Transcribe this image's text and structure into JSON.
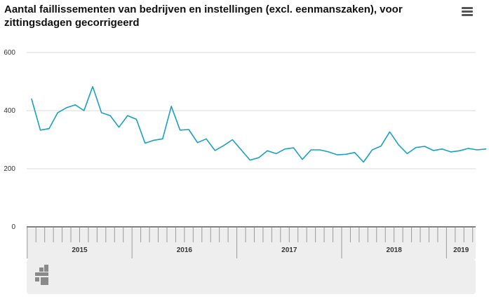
{
  "title": "Aantal faillissementen van bedrijven en instellingen (excl. eenmanszaken), voor zittingsdagen gecorrigeerd",
  "menu_icon": "hamburger-menu-icon",
  "logo_icon": "cbs-logo-icon",
  "colors": {
    "line": "#1aa0c0",
    "grid": "#d9d9d9",
    "navigator": "#eeeeee",
    "axis": "#555555"
  },
  "chart_data": {
    "type": "line",
    "title": "Aantal faillissementen van bedrijven en instellingen (excl. eenmanszaken), voor zittingsdagen gecorrigeerd",
    "xlabel": "",
    "ylabel": "",
    "ylim": [
      0,
      600
    ],
    "yticks": [
      "0",
      "200",
      "400",
      "600"
    ],
    "grid": true,
    "x_start": "2015-01",
    "x_end": "2019-05",
    "year_labels": [
      {
        "label": "2015",
        "from": "2015-01",
        "to": "2015-12"
      },
      {
        "label": "2016",
        "from": "2016-01",
        "to": "2016-12"
      },
      {
        "label": "2017",
        "from": "2017-01",
        "to": "2017-12"
      },
      {
        "label": "2018",
        "from": "2018-01",
        "to": "2018-12"
      },
      {
        "label": "2019",
        "from": "2019-01",
        "to": "2019-05"
      }
    ],
    "x": [
      "2015-01",
      "2015-02",
      "2015-03",
      "2015-04",
      "2015-05",
      "2015-06",
      "2015-07",
      "2015-08",
      "2015-09",
      "2015-10",
      "2015-11",
      "2015-12",
      "2016-01",
      "2016-02",
      "2016-03",
      "2016-04",
      "2016-05",
      "2016-06",
      "2016-07",
      "2016-08",
      "2016-09",
      "2016-10",
      "2016-11",
      "2016-12",
      "2017-01",
      "2017-02",
      "2017-03",
      "2017-04",
      "2017-05",
      "2017-06",
      "2017-07",
      "2017-08",
      "2017-09",
      "2017-10",
      "2017-11",
      "2017-12",
      "2018-01",
      "2018-02",
      "2018-03",
      "2018-04",
      "2018-05",
      "2018-06",
      "2018-07",
      "2018-08",
      "2018-09",
      "2018-10",
      "2018-11",
      "2018-12",
      "2019-01",
      "2019-02",
      "2019-03",
      "2019-04",
      "2019-05"
    ],
    "series": [
      {
        "values": [
          440,
          333,
          338,
          393,
          410,
          420,
          400,
          483,
          393,
          383,
          343,
          383,
          370,
          288,
          298,
          303,
          415,
          333,
          335,
          290,
          303,
          263,
          280,
          300,
          265,
          230,
          238,
          262,
          252,
          268,
          272,
          232,
          265,
          265,
          258,
          248,
          250,
          256,
          223,
          265,
          278,
          327,
          283,
          252,
          273,
          277,
          263,
          268,
          258,
          262,
          270,
          265,
          268
        ]
      }
    ]
  }
}
